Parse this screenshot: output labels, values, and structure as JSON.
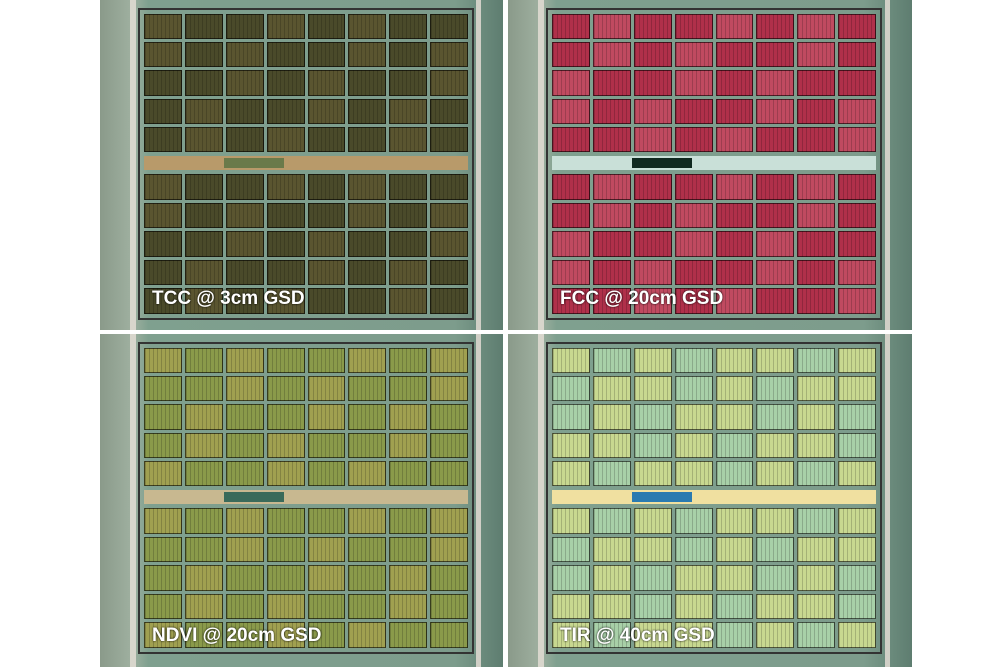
{
  "panels": [
    {
      "label": "TCC @ 3cm GSD",
      "plot_color": "#4a4a2a",
      "alt_color": "#5a5530",
      "mid_color": "#b89a6a",
      "pond_color": "#6a7a4a"
    },
    {
      "label": "FCC @ 20cm GSD",
      "plot_color": "#b0304a",
      "alt_color": "#c04a60",
      "mid_color": "#c9e0d8",
      "pond_color": "#102a20"
    },
    {
      "label": "NDVI @ 20cm GSD",
      "plot_color": "#8a9a4a",
      "alt_color": "#a0a050",
      "mid_color": "#c8b890",
      "pond_color": "#3a6a5a"
    },
    {
      "label": "TIR @ 40cm GSD",
      "plot_color": "#c8d890",
      "alt_color": "#a8d0a8",
      "mid_color": "#f0e0a0",
      "pond_color": "#2a7ab0"
    }
  ]
}
